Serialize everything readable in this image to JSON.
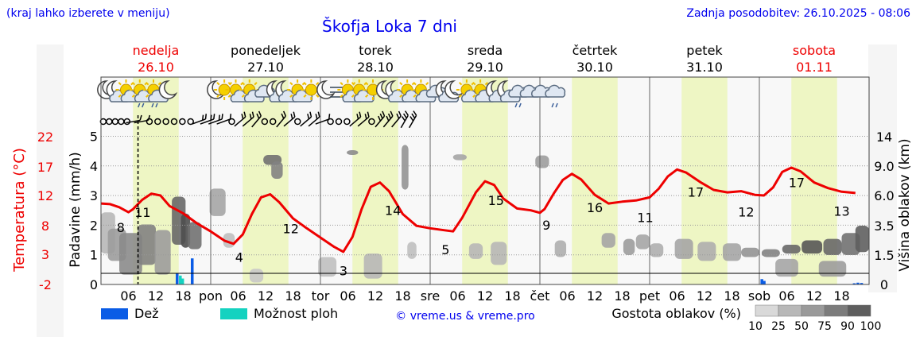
{
  "header": {
    "hint": "(kraj lahko izberete v meniju)",
    "title": "Škofja Loka 7 dni",
    "updated": "Zadnja posodobitev: 26.10.2025 - 08:06"
  },
  "chart_data": {
    "type": "line",
    "title": "Škofja Loka 7 dni",
    "x_range_hours": [
      0,
      168
    ],
    "days": [
      {
        "name": "nedelja",
        "date": "26.10",
        "weekend": true
      },
      {
        "name": "ponedeljek",
        "date": "27.10",
        "weekend": false
      },
      {
        "name": "torek",
        "date": "28.10",
        "weekend": false
      },
      {
        "name": "sreda",
        "date": "29.10",
        "weekend": false
      },
      {
        "name": "četrtek",
        "date": "30.10",
        "weekend": false
      },
      {
        "name": "petek",
        "date": "31.10",
        "weekend": false
      },
      {
        "name": "sobota",
        "date": "01.11",
        "weekend": true
      }
    ],
    "x_ticks": [
      {
        "h": 6,
        "label": "06"
      },
      {
        "h": 12,
        "label": "12"
      },
      {
        "h": 18,
        "label": "18"
      },
      {
        "h": 24,
        "label": "pon"
      },
      {
        "h": 30,
        "label": "06"
      },
      {
        "h": 36,
        "label": "12"
      },
      {
        "h": 42,
        "label": "18"
      },
      {
        "h": 48,
        "label": "tor"
      },
      {
        "h": 54,
        "label": "06"
      },
      {
        "h": 60,
        "label": "12"
      },
      {
        "h": 66,
        "label": "18"
      },
      {
        "h": 72,
        "label": "sre"
      },
      {
        "h": 78,
        "label": "06"
      },
      {
        "h": 84,
        "label": "12"
      },
      {
        "h": 90,
        "label": "18"
      },
      {
        "h": 96,
        "label": "čet"
      },
      {
        "h": 102,
        "label": "06"
      },
      {
        "h": 108,
        "label": "12"
      },
      {
        "h": 114,
        "label": "18"
      },
      {
        "h": 120,
        "label": "pet"
      },
      {
        "h": 126,
        "label": "06"
      },
      {
        "h": 132,
        "label": "12"
      },
      {
        "h": 138,
        "label": "18"
      },
      {
        "h": 144,
        "label": "sob"
      },
      {
        "h": 150,
        "label": "06"
      },
      {
        "h": 156,
        "label": "12"
      },
      {
        "h": 162,
        "label": "18"
      }
    ],
    "now_hour": 8.1,
    "y_left_precip": {
      "label": "Padavine (mm/h)",
      "ticks": [
        0,
        1,
        2,
        3,
        4,
        5
      ],
      "range": [
        0,
        5
      ]
    },
    "y_left_temp": {
      "label": "Temperatura (°C)",
      "ticks": [
        -2,
        3,
        8,
        12,
        17,
        22
      ]
    },
    "y_right": {
      "label": "Višina oblakov (km)",
      "ticks": [
        "0",
        "1.5",
        "3.5",
        "6.0",
        "9.0",
        "14"
      ]
    },
    "temperature_series": {
      "name": "Temperatura",
      "color": "#ee0000",
      "points": [
        [
          0,
          11.2
        ],
        [
          2,
          11.1
        ],
        [
          4,
          10.6
        ],
        [
          6,
          9.8
        ],
        [
          7,
          10.3
        ],
        [
          9,
          11.8
        ],
        [
          11,
          12.8
        ],
        [
          13,
          12.5
        ],
        [
          15,
          10.8
        ],
        [
          18,
          9.6
        ],
        [
          21,
          8.0
        ],
        [
          24,
          6.7
        ],
        [
          27,
          5.2
        ],
        [
          29,
          4.7
        ],
        [
          31,
          6.2
        ],
        [
          33,
          9.5
        ],
        [
          35,
          12.2
        ],
        [
          37,
          12.7
        ],
        [
          39,
          11.4
        ],
        [
          42,
          8.8
        ],
        [
          45,
          7.2
        ],
        [
          48,
          5.7
        ],
        [
          51,
          4.2
        ],
        [
          53,
          3.4
        ],
        [
          55,
          5.8
        ],
        [
          57,
          10.3
        ],
        [
          59,
          13.9
        ],
        [
          61,
          14.6
        ],
        [
          63,
          13.2
        ],
        [
          66,
          9.5
        ],
        [
          69,
          7.6
        ],
        [
          72,
          7.2
        ],
        [
          75,
          6.9
        ],
        [
          77,
          6.7
        ],
        [
          79,
          8.9
        ],
        [
          82,
          13.0
        ],
        [
          84,
          14.8
        ],
        [
          86,
          14.2
        ],
        [
          88,
          12.0
        ],
        [
          91,
          10.4
        ],
        [
          94,
          10.1
        ],
        [
          96,
          9.7
        ],
        [
          97,
          10.3
        ],
        [
          99,
          12.8
        ],
        [
          101,
          15.0
        ],
        [
          103,
          16.0
        ],
        [
          105,
          15.1
        ],
        [
          108,
          12.6
        ],
        [
          111,
          11.2
        ],
        [
          114,
          11.5
        ],
        [
          117,
          11.7
        ],
        [
          120,
          12.2
        ],
        [
          122,
          13.6
        ],
        [
          124,
          15.6
        ],
        [
          126,
          16.7
        ],
        [
          128,
          16.2
        ],
        [
          131,
          14.7
        ],
        [
          134,
          13.4
        ],
        [
          137,
          13.0
        ],
        [
          140,
          13.2
        ],
        [
          143,
          12.6
        ],
        [
          145,
          12.5
        ],
        [
          147,
          13.8
        ],
        [
          149,
          16.3
        ],
        [
          151,
          17.0
        ],
        [
          153,
          16.4
        ],
        [
          156,
          14.6
        ],
        [
          159,
          13.7
        ],
        [
          162,
          13.1
        ],
        [
          165,
          12.9
        ]
      ]
    },
    "temperature_labels": [
      {
        "h": 1.8,
        "value": "8",
        "pos": "below"
      },
      {
        "h": 3.8,
        "value": "11",
        "pos": "above"
      },
      {
        "h": 12.6,
        "value": "4",
        "pos": "below"
      },
      {
        "h": 17.3,
        "value": "12",
        "pos": "above"
      },
      {
        "h": 22.1,
        "value": "3",
        "pos": "below"
      },
      {
        "h": 26.6,
        "value": "14",
        "pos": "above"
      },
      {
        "h": 31.4,
        "value": "5",
        "pos": "below"
      },
      {
        "h": 36.0,
        "value": "15",
        "pos": "above"
      },
      {
        "h": 40.6,
        "value": "9",
        "pos": "below"
      },
      {
        "h": 45.0,
        "value": "16",
        "pos": "above"
      },
      {
        "h": 49.6,
        "value": "11",
        "pos": "below"
      },
      {
        "h": 54.2,
        "value": "17",
        "pos": "above"
      },
      {
        "h": 58.8,
        "value": "12",
        "pos": "below"
      },
      {
        "h": 63.4,
        "value": "17",
        "pos": "above"
      },
      {
        "h": 67.5,
        "value": "13",
        "pos": "below"
      }
    ],
    "precipitation_bars": [
      {
        "h": 16.7,
        "value": 0.38,
        "kind": "rain"
      },
      {
        "h": 20.0,
        "value": 0.88,
        "kind": "rain"
      },
      {
        "h": 17.4,
        "value": 0.3,
        "kind": "showers"
      },
      {
        "h": 17.9,
        "value": 0.2,
        "kind": "showers"
      },
      {
        "h": 144.6,
        "value": 0.18,
        "kind": "rain"
      },
      {
        "h": 145.1,
        "value": 0.12,
        "kind": "rain"
      },
      {
        "h": 164.8,
        "value": 0.04,
        "kind": "rain"
      },
      {
        "h": 165.6,
        "value": 0.06,
        "kind": "rain"
      },
      {
        "h": 166.4,
        "value": 0.05,
        "kind": "rain"
      }
    ],
    "cloud_patches": [
      {
        "h": 1.5,
        "w": 3.2,
        "top_km": 4.6,
        "bottom_km": 1.6,
        "density": 30
      },
      {
        "h": 3.5,
        "w": 4.0,
        "top_km": 3.3,
        "bottom_km": 1.2,
        "density": 45
      },
      {
        "h": 6.5,
        "w": 5.0,
        "top_km": 3.0,
        "bottom_km": 0.5,
        "density": 55
      },
      {
        "h": 10.0,
        "w": 4.0,
        "top_km": 3.6,
        "bottom_km": 1.0,
        "density": 60
      },
      {
        "h": 13.5,
        "w": 3.5,
        "top_km": 3.2,
        "bottom_km": 0.5,
        "density": 45
      },
      {
        "h": 17.0,
        "w": 3.0,
        "top_km": 5.9,
        "bottom_km": 2.2,
        "density": 75
      },
      {
        "h": 18.5,
        "w": 2.0,
        "top_km": 4.5,
        "bottom_km": 2.0,
        "density": 90
      },
      {
        "h": 20.5,
        "w": 3.0,
        "top_km": 3.8,
        "bottom_km": 1.9,
        "density": 70
      },
      {
        "h": 25.5,
        "w": 3.5,
        "top_km": 6.7,
        "bottom_km": 4.3,
        "density": 40
      },
      {
        "h": 28.0,
        "w": 2.5,
        "top_km": 3.0,
        "bottom_km": 2.0,
        "density": 25
      },
      {
        "h": 34.0,
        "w": 3.0,
        "top_km": 0.8,
        "bottom_km": 0.1,
        "density": 20
      },
      {
        "h": 37.5,
        "w": 4.0,
        "top_km": 10.9,
        "bottom_km": 9.2,
        "density": 70
      },
      {
        "h": 38.5,
        "w": 2.5,
        "top_km": 9.8,
        "bottom_km": 7.7,
        "density": 60
      },
      {
        "h": 49.5,
        "w": 4.0,
        "top_km": 1.4,
        "bottom_km": 0.4,
        "density": 25
      },
      {
        "h": 59.5,
        "w": 4.0,
        "top_km": 1.6,
        "bottom_km": 0.3,
        "density": 30
      },
      {
        "h": 55.0,
        "w": 2.5,
        "top_km": 11.7,
        "bottom_km": 10.9,
        "density": 55
      },
      {
        "h": 66.5,
        "w": 1.5,
        "top_km": 12.6,
        "bottom_km": 6.6,
        "density": 50
      },
      {
        "h": 68.0,
        "w": 2.0,
        "top_km": 2.4,
        "bottom_km": 1.3,
        "density": 25
      },
      {
        "h": 78.5,
        "w": 3.0,
        "top_km": 11.0,
        "bottom_km": 10.0,
        "density": 40
      },
      {
        "h": 82.0,
        "w": 3.0,
        "top_km": 2.3,
        "bottom_km": 1.3,
        "density": 30
      },
      {
        "h": 87.0,
        "w": 3.5,
        "top_km": 2.4,
        "bottom_km": 1.0,
        "density": 30
      },
      {
        "h": 96.5,
        "w": 3.0,
        "top_km": 10.8,
        "bottom_km": 8.8,
        "density": 45
      },
      {
        "h": 100.5,
        "w": 2.5,
        "top_km": 2.5,
        "bottom_km": 1.4,
        "density": 35
      },
      {
        "h": 111.0,
        "w": 3.0,
        "top_km": 3.0,
        "bottom_km": 2.0,
        "density": 40
      },
      {
        "h": 115.5,
        "w": 2.5,
        "top_km": 2.6,
        "bottom_km": 1.5,
        "density": 45
      },
      {
        "h": 118.5,
        "w": 3.0,
        "top_km": 2.9,
        "bottom_km": 1.9,
        "density": 40
      },
      {
        "h": 121.5,
        "w": 3.0,
        "top_km": 2.3,
        "bottom_km": 1.4,
        "density": 35
      },
      {
        "h": 127.5,
        "w": 4.0,
        "top_km": 2.6,
        "bottom_km": 1.3,
        "density": 40
      },
      {
        "h": 132.5,
        "w": 4.0,
        "top_km": 2.4,
        "bottom_km": 1.2,
        "density": 35
      },
      {
        "h": 138.0,
        "w": 4.0,
        "top_km": 2.3,
        "bottom_km": 1.2,
        "density": 40
      },
      {
        "h": 142.0,
        "w": 4.0,
        "top_km": 2.0,
        "bottom_km": 1.4,
        "density": 50
      },
      {
        "h": 146.5,
        "w": 4.0,
        "top_km": 1.9,
        "bottom_km": 1.4,
        "density": 60
      },
      {
        "h": 151.0,
        "w": 4.0,
        "top_km": 2.2,
        "bottom_km": 1.6,
        "density": 75
      },
      {
        "h": 155.5,
        "w": 4.5,
        "top_km": 2.5,
        "bottom_km": 1.6,
        "density": 85
      },
      {
        "h": 160.0,
        "w": 4.0,
        "top_km": 2.6,
        "bottom_km": 1.5,
        "density": 75
      },
      {
        "h": 164.0,
        "w": 4.0,
        "top_km": 3.0,
        "bottom_km": 1.5,
        "density": 70
      },
      {
        "h": 166.5,
        "w": 3.0,
        "top_km": 3.5,
        "bottom_km": 1.7,
        "density": 80
      },
      {
        "h": 150.0,
        "w": 5.0,
        "top_km": 1.3,
        "bottom_km": 0.4,
        "density": 40
      },
      {
        "h": 160.0,
        "w": 6.0,
        "top_km": 1.2,
        "bottom_km": 0.4,
        "density": 45
      }
    ],
    "weather_icons": [
      {
        "h": 1.5,
        "icon": "moon"
      },
      {
        "h": 3.5,
        "icon": "moon-cloud"
      },
      {
        "h": 6,
        "icon": "sun-cloud"
      },
      {
        "h": 9,
        "icon": "sun-rain"
      },
      {
        "h": 12,
        "icon": "sun-drizzle"
      },
      {
        "h": 15,
        "icon": "moon"
      },
      {
        "h": 25.5,
        "icon": "moon"
      },
      {
        "h": 27.5,
        "icon": "sun"
      },
      {
        "h": 30,
        "icon": "sun-cloud"
      },
      {
        "h": 33,
        "icon": "sun-cloud"
      },
      {
        "h": 36,
        "icon": "cloud"
      },
      {
        "h": 38.5,
        "icon": "moon-cloud"
      },
      {
        "h": 40.5,
        "icon": "moon-cloud"
      },
      {
        "h": 43.5,
        "icon": "sun-cloud"
      },
      {
        "h": 46.5,
        "icon": "sun"
      },
      {
        "h": 49.5,
        "icon": "moon"
      },
      {
        "h": 52,
        "icon": "fog"
      },
      {
        "h": 54.5,
        "icon": "sun-cloud"
      },
      {
        "h": 57,
        "icon": "sun-cloud"
      },
      {
        "h": 60,
        "icon": "sun"
      },
      {
        "h": 62.5,
        "icon": "moon"
      },
      {
        "h": 64.5,
        "icon": "moon-cloud"
      },
      {
        "h": 67.5,
        "icon": "sun-cloud"
      },
      {
        "h": 70.5,
        "icon": "sun-cloud"
      },
      {
        "h": 73.5,
        "icon": "cloud"
      },
      {
        "h": 75.5,
        "icon": "moon-cloud"
      },
      {
        "h": 77.5,
        "icon": "moon"
      },
      {
        "h": 80.5,
        "icon": "sun-cloud"
      },
      {
        "h": 83.5,
        "icon": "sun-cloud"
      },
      {
        "h": 86.5,
        "icon": "moon-cloud"
      },
      {
        "h": 89,
        "icon": "moon-cloud"
      },
      {
        "h": 91.5,
        "icon": "cloud-rain"
      },
      {
        "h": 94,
        "icon": "cloud"
      },
      {
        "h": 96.5,
        "icon": "cloud"
      },
      {
        "h": 99.5,
        "icon": "cloud-rain"
      }
    ],
    "wind_symbols": [
      {
        "h": 0.5,
        "type": "calm"
      },
      {
        "h": 1.8,
        "type": "calm"
      },
      {
        "h": 3.1,
        "type": "calm"
      },
      {
        "h": 4.4,
        "type": "calm"
      },
      {
        "h": 5.7,
        "type": "calm"
      },
      {
        "h": 7.0,
        "type": "barb",
        "dir": 260,
        "speed": 5
      },
      {
        "h": 8.8,
        "type": "barb",
        "dir": 260,
        "speed": 5
      },
      {
        "h": 10.6,
        "type": "calm"
      },
      {
        "h": 12.4,
        "type": "calm"
      },
      {
        "h": 14.2,
        "type": "calm"
      },
      {
        "h": 16.0,
        "type": "calm"
      },
      {
        "h": 17.8,
        "type": "calm"
      },
      {
        "h": 19.6,
        "type": "calm"
      },
      {
        "h": 21.4,
        "type": "barb",
        "dir": 250,
        "speed": 10
      },
      {
        "h": 23.2,
        "type": "barb",
        "dir": 250,
        "speed": 10
      },
      {
        "h": 25.0,
        "type": "barb",
        "dir": 250,
        "speed": 10
      },
      {
        "h": 26.8,
        "type": "barb",
        "dir": 250,
        "speed": 5
      },
      {
        "h": 28.6,
        "type": "calm"
      },
      {
        "h": 30.4,
        "type": "barb",
        "dir": 230,
        "speed": 10
      },
      {
        "h": 32.2,
        "type": "barb",
        "dir": 230,
        "speed": 10
      },
      {
        "h": 34.0,
        "type": "barb",
        "dir": 220,
        "speed": 10
      },
      {
        "h": 35.8,
        "type": "calm"
      },
      {
        "h": 37.6,
        "type": "calm"
      },
      {
        "h": 39.4,
        "type": "barb",
        "dir": 220,
        "speed": 10
      },
      {
        "h": 41.2,
        "type": "barb",
        "dir": 230,
        "speed": 10
      },
      {
        "h": 43.0,
        "type": "calm"
      },
      {
        "h": 44.8,
        "type": "barb",
        "dir": 230,
        "speed": 10
      },
      {
        "h": 46.6,
        "type": "barb",
        "dir": 230,
        "speed": 10
      },
      {
        "h": 48.4,
        "type": "barb",
        "dir": 250,
        "speed": 5
      },
      {
        "h": 50.2,
        "type": "calm"
      },
      {
        "h": 52.0,
        "type": "calm"
      },
      {
        "h": 53.8,
        "type": "calm"
      },
      {
        "h": 55.6,
        "type": "barb",
        "dir": 230,
        "speed": 10
      },
      {
        "h": 57.4,
        "type": "barb",
        "dir": 230,
        "speed": 10
      },
      {
        "h": 59.2,
        "type": "calm"
      },
      {
        "h": 61.0,
        "type": "barb",
        "dir": 220,
        "speed": 15
      },
      {
        "h": 62.8,
        "type": "barb",
        "dir": 220,
        "speed": 15
      },
      {
        "h": 64.6,
        "type": "barb",
        "dir": 220,
        "speed": 10
      },
      {
        "h": 66.4,
        "type": "barb",
        "dir": 210,
        "speed": 15
      },
      {
        "h": 68.2,
        "type": "barb",
        "dir": 210,
        "speed": 20
      }
    ],
    "legend": {
      "rain_label": "Dež",
      "showers_label": "Možnost ploh",
      "credit": "© vreme.us & vreme.pro",
      "density_label": "Gostota oblakov (%)",
      "density_ticks": [
        "10",
        "25",
        "50",
        "75",
        "90",
        "100"
      ],
      "colors": {
        "rain": "#0a5ce6",
        "showers": "#14d2c0",
        "temp": "#ee0000",
        "weekday_band": "#eef6c4"
      }
    }
  }
}
